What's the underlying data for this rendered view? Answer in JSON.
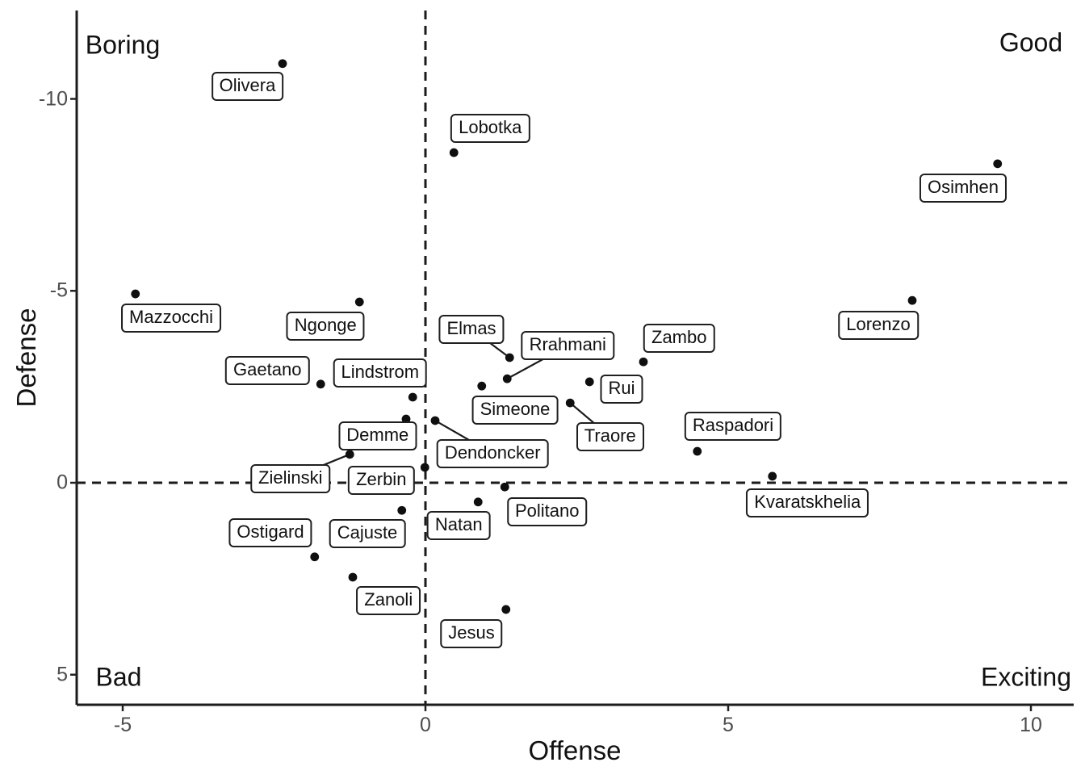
{
  "chart_data": {
    "type": "scatter",
    "title": "",
    "xlabel": "Offense",
    "ylabel": "Defense",
    "x_ticks": [
      -5,
      0,
      5,
      10
    ],
    "y_ticks": [
      -10,
      -5,
      0,
      5
    ],
    "x_range": [
      -5.8,
      10.7
    ],
    "y_range": [
      -12.3,
      5.8
    ],
    "y_axis_reversed": true,
    "grid": false,
    "reference_lines": {
      "vertical_x": 0,
      "horizontal_y": 0,
      "style": "dashed"
    },
    "quadrant_labels": [
      {
        "text": "Boring",
        "position": "top-left"
      },
      {
        "text": "Good",
        "position": "top-right"
      },
      {
        "text": "Bad",
        "position": "bottom-left"
      },
      {
        "text": "Exciting",
        "position": "bottom-right"
      }
    ],
    "points": [
      {
        "name": "Olivera",
        "offense": -2.36,
        "defense": -10.92,
        "label_x": -2.94,
        "label_y": -10.33,
        "segment": false
      },
      {
        "name": "Lobotka",
        "offense": 0.47,
        "defense": -8.6,
        "label_x": 1.07,
        "label_y": -9.23,
        "segment": false
      },
      {
        "name": "Osimhen",
        "offense": 9.45,
        "defense": -8.31,
        "label_x": 8.88,
        "label_y": -7.68,
        "segment": false
      },
      {
        "name": "Mazzocchi",
        "offense": -4.79,
        "defense": -4.92,
        "label_x": -4.2,
        "label_y": -4.29,
        "segment": false
      },
      {
        "name": "Ngonge",
        "offense": -1.09,
        "defense": -4.71,
        "label_x": -1.65,
        "label_y": -4.08,
        "segment": false
      },
      {
        "name": "Lorenzo",
        "offense": 8.04,
        "defense": -4.75,
        "label_x": 7.48,
        "label_y": -4.1,
        "segment": false
      },
      {
        "name": "Elmas",
        "offense": 1.39,
        "defense": -3.26,
        "label_x": 0.76,
        "label_y": -4.0,
        "segment": true
      },
      {
        "name": "Zambo",
        "offense": 3.6,
        "defense": -3.15,
        "label_x": 4.19,
        "label_y": -3.76,
        "segment": false
      },
      {
        "name": "Rrahmani",
        "offense": 1.35,
        "defense": -2.71,
        "label_x": 2.35,
        "label_y": -3.57,
        "segment": true
      },
      {
        "name": "Rui",
        "offense": 2.71,
        "defense": -2.63,
        "label_x": 3.24,
        "label_y": -2.44,
        "segment": false
      },
      {
        "name": "Gaetano",
        "offense": -1.73,
        "defense": -2.57,
        "label_x": -2.61,
        "label_y": -2.92,
        "segment": false
      },
      {
        "name": "Simeone",
        "offense": 0.93,
        "defense": -2.52,
        "label_x": 1.48,
        "label_y": -1.89,
        "segment": false
      },
      {
        "name": "Lindstrom",
        "offense": -0.21,
        "defense": -2.23,
        "label_x": -0.75,
        "label_y": -2.86,
        "segment": false
      },
      {
        "name": "Traore",
        "offense": 2.39,
        "defense": -2.08,
        "label_x": 3.05,
        "label_y": -1.2,
        "segment": true
      },
      {
        "name": "Demme",
        "offense": -0.32,
        "defense": -1.66,
        "label_x": -0.79,
        "label_y": -1.22,
        "segment": false
      },
      {
        "name": "Dendoncker",
        "offense": 0.16,
        "defense": -1.62,
        "label_x": 1.11,
        "label_y": -0.76,
        "segment": true
      },
      {
        "name": "Raspadori",
        "offense": 4.49,
        "defense": -0.82,
        "label_x": 5.08,
        "label_y": -1.47,
        "segment": false
      },
      {
        "name": "Zielinski",
        "offense": -1.25,
        "defense": -0.74,
        "label_x": -2.23,
        "label_y": -0.11,
        "segment": true
      },
      {
        "name": "Zerbin",
        "offense": -0.01,
        "defense": -0.4,
        "label_x": -0.73,
        "label_y": -0.06,
        "segment": false
      },
      {
        "name": "Kvaratskhelia",
        "offense": 5.73,
        "defense": -0.17,
        "label_x": 6.31,
        "label_y": 0.53,
        "segment": false
      },
      {
        "name": "Politano",
        "offense": 1.31,
        "defense": 0.11,
        "label_x": 2.01,
        "label_y": 0.76,
        "segment": false
      },
      {
        "name": "Natan",
        "offense": 0.87,
        "defense": 0.5,
        "label_x": 0.55,
        "label_y": 1.11,
        "segment": false
      },
      {
        "name": "Cajuste",
        "offense": -0.39,
        "defense": 0.72,
        "label_x": -0.96,
        "label_y": 1.33,
        "segment": false
      },
      {
        "name": "Ostigard",
        "offense": -1.83,
        "defense": 1.93,
        "label_x": -2.56,
        "label_y": 1.31,
        "segment": false
      },
      {
        "name": "Zanoli",
        "offense": -1.2,
        "defense": 2.46,
        "label_x": -0.61,
        "label_y": 3.07,
        "segment": false
      },
      {
        "name": "Jesus",
        "offense": 1.33,
        "defense": 3.3,
        "label_x": 0.76,
        "label_y": 3.93,
        "segment": false
      }
    ]
  }
}
